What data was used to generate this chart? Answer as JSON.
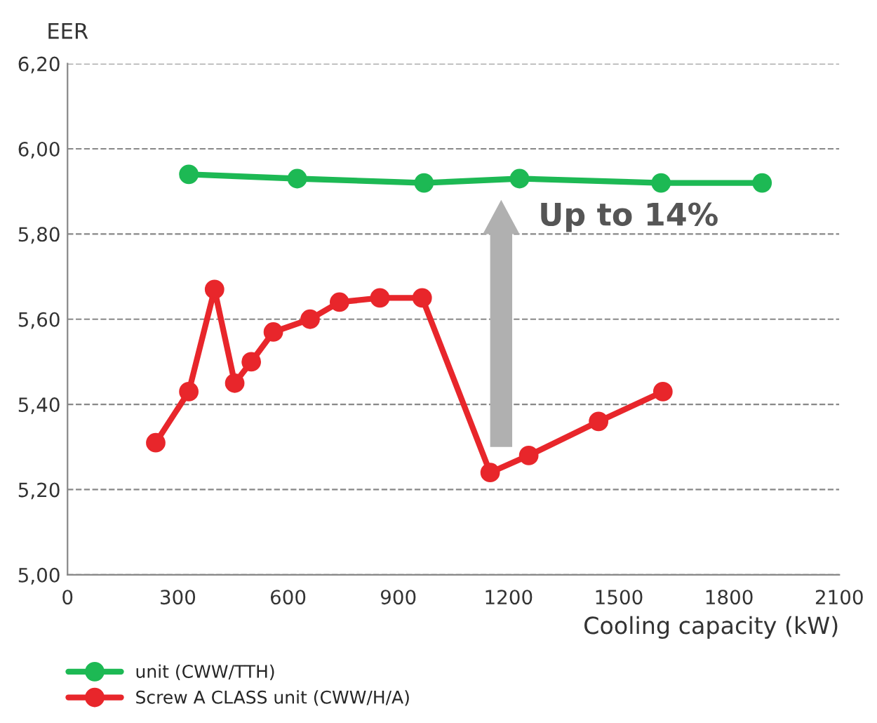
{
  "chart_data": {
    "type": "line",
    "xlabel": "Cooling capacity (kW)",
    "ylabel": "EER",
    "xlim": [
      0,
      2100
    ],
    "xticks": [
      0,
      300,
      600,
      900,
      1200,
      1500,
      1800,
      2100
    ],
    "ylim": [
      5.0,
      6.2
    ],
    "yticks": [
      {
        "value": 5.0,
        "label": "5,00"
      },
      {
        "value": 5.2,
        "label": "5,20"
      },
      {
        "value": 5.4,
        "label": "5,40"
      },
      {
        "value": 5.6,
        "label": "5,60"
      },
      {
        "value": 5.8,
        "label": "5,80"
      },
      {
        "value": 6.0,
        "label": "6,00"
      },
      {
        "value": 6.2,
        "label": "6,20"
      }
    ],
    "grid": "y",
    "legend": "bottom",
    "marker": "circle",
    "line_style": "solid",
    "series": [
      {
        "name": "unit (CWW/TTH)",
        "color": "#1db954",
        "x": [
          330,
          625,
          970,
          1230,
          1615,
          1890
        ],
        "values": [
          5.94,
          5.93,
          5.92,
          5.93,
          5.92,
          5.92
        ]
      },
      {
        "name": "Screw A CLASS unit (CWW/H/A)",
        "color": "#e8262b",
        "x": [
          240,
          330,
          400,
          455,
          500,
          560,
          660,
          740,
          850,
          965,
          1150,
          1255,
          1445,
          1620
        ],
        "values": [
          5.31,
          5.43,
          5.67,
          5.45,
          5.5,
          5.57,
          5.6,
          5.64,
          5.65,
          5.65,
          5.24,
          5.28,
          5.36,
          5.43
        ]
      }
    ],
    "annotations": [
      "Up to 14%"
    ]
  }
}
